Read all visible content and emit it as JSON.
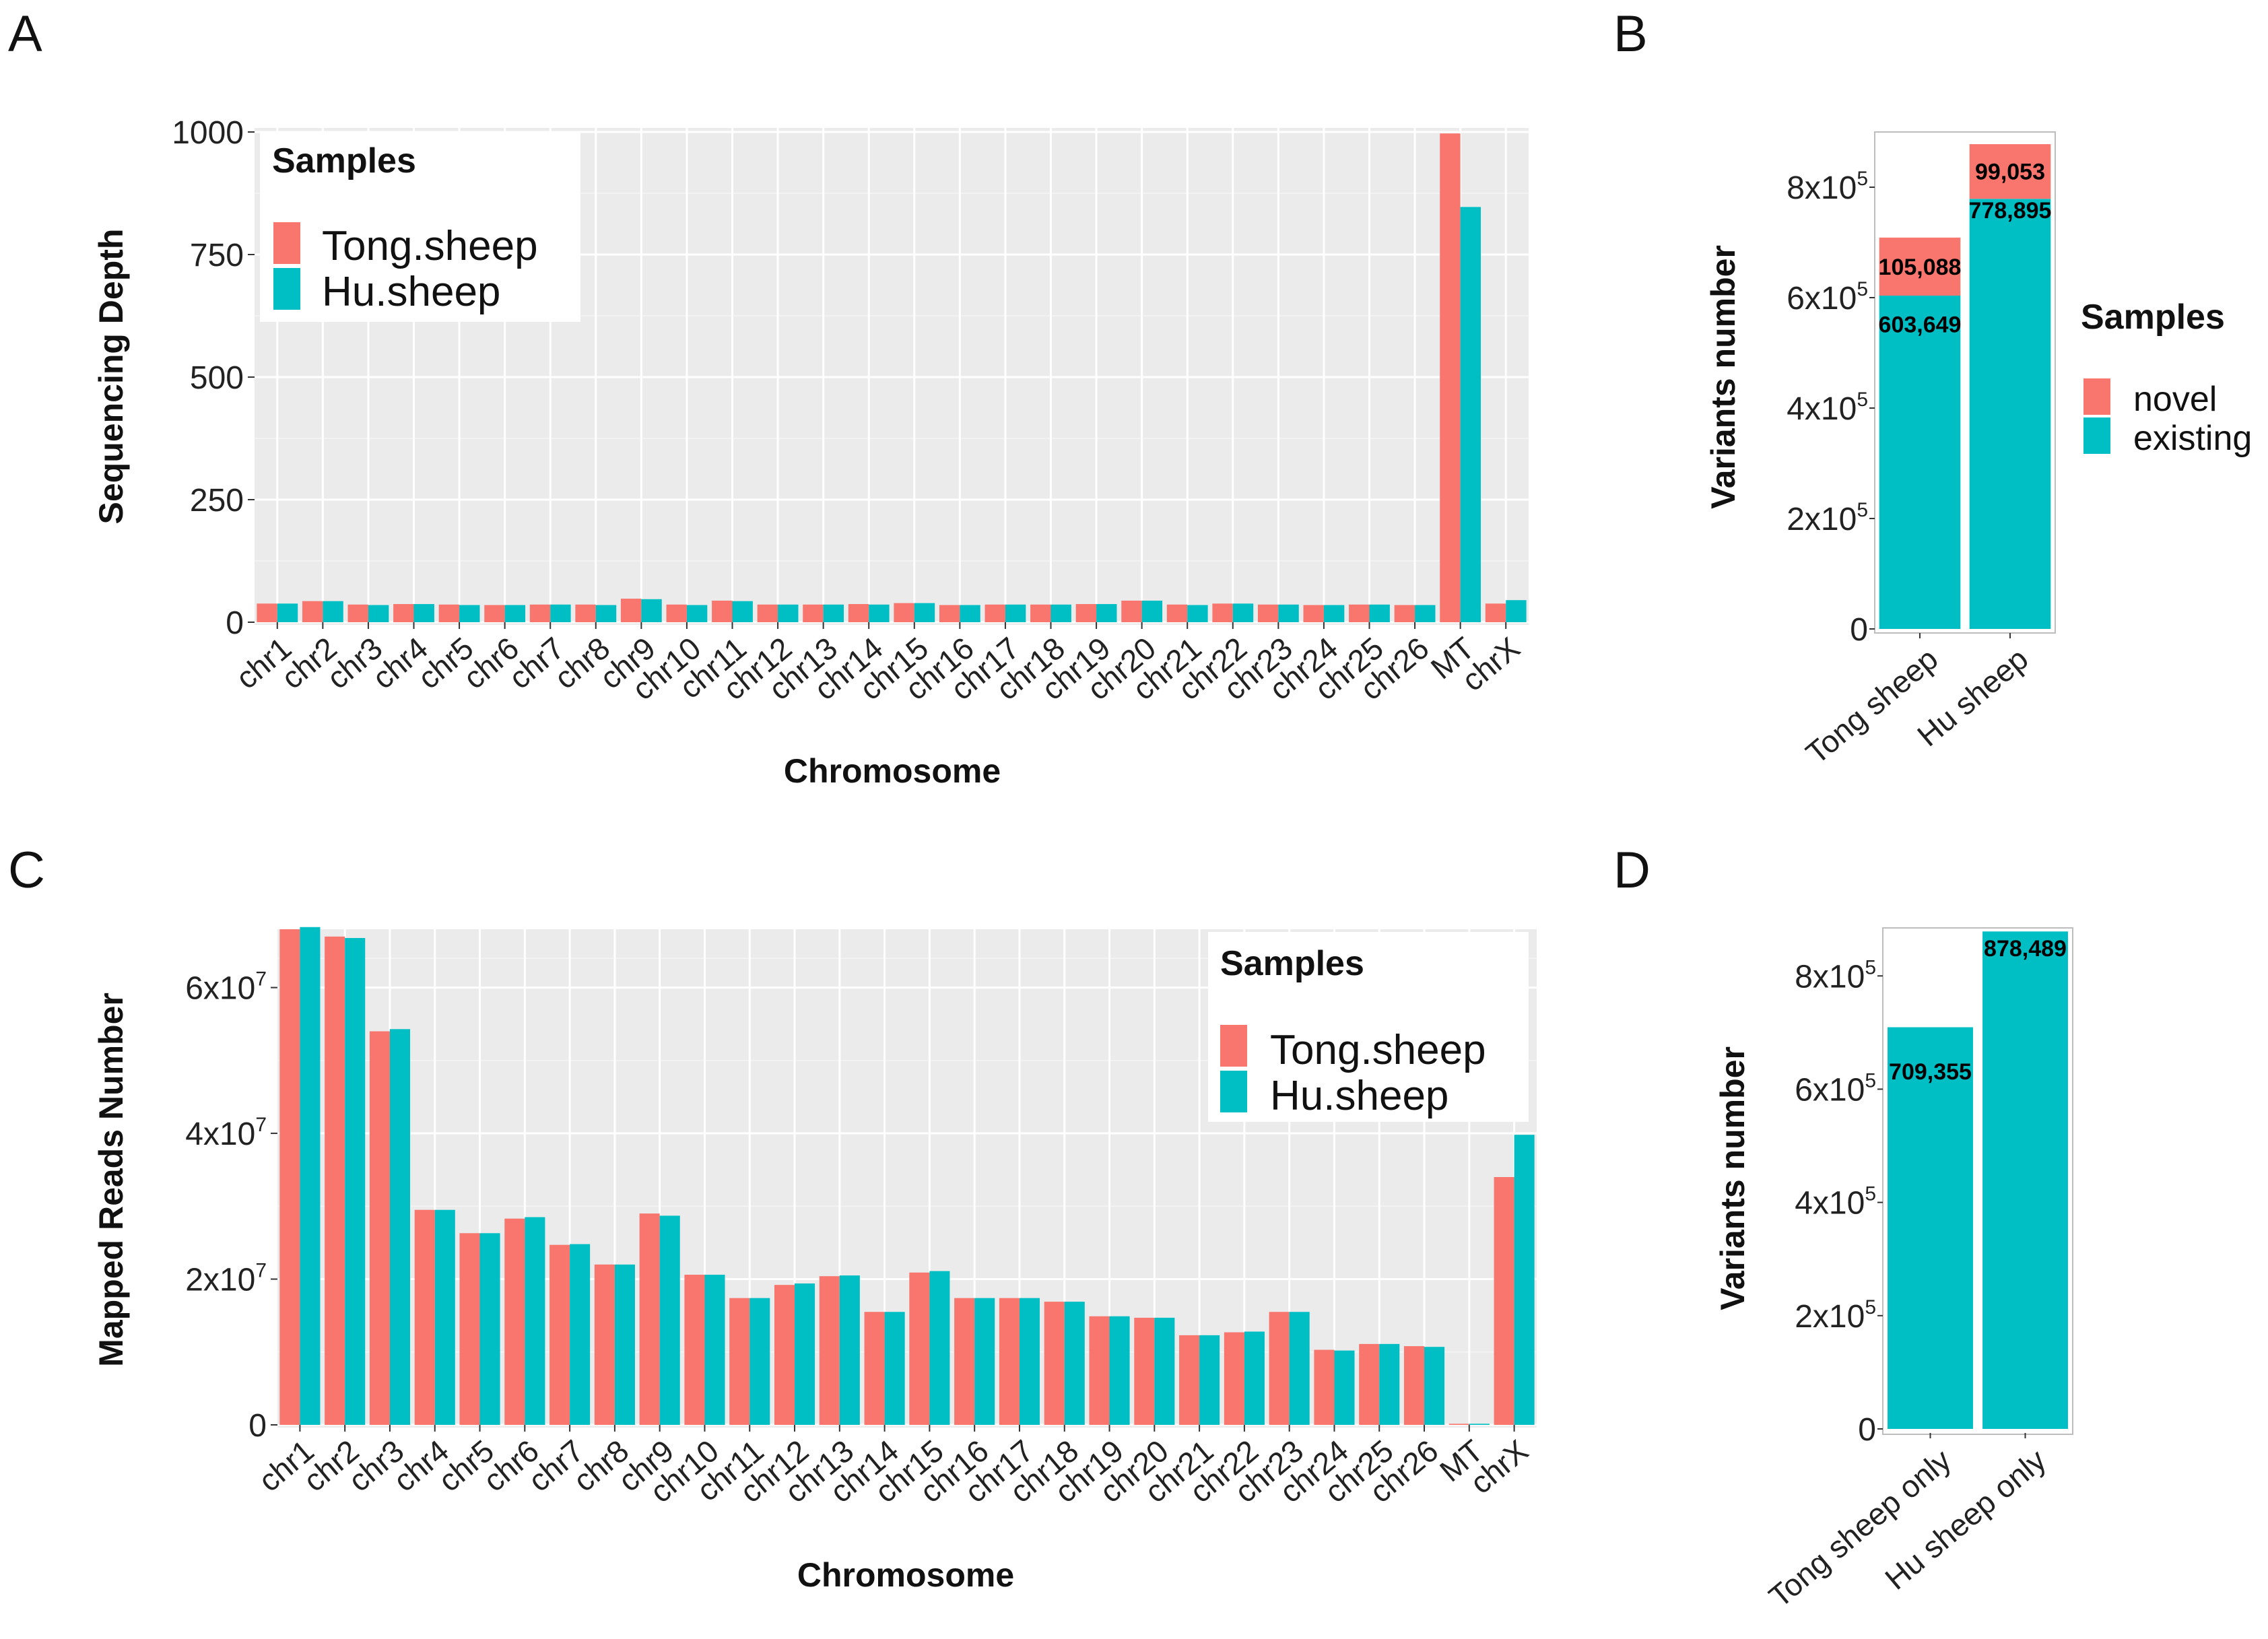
{
  "colors": {
    "tong": "#F8766D",
    "hu": "#00BFC4",
    "panel_bg": "#EBEBEB"
  },
  "chart_data": [
    {
      "id": "A",
      "type": "bar",
      "panel_label": "A",
      "xlabel": "Chromosome",
      "ylabel": "Sequencing Depth",
      "ylim": [
        0,
        1000
      ],
      "yticks": [
        0,
        250,
        500,
        750,
        1000
      ],
      "ytick_labels": [
        "0",
        "250",
        "500",
        "750",
        "1000"
      ],
      "legend_title": "Samples",
      "categories": [
        "chr1",
        "chr2",
        "chr3",
        "chr4",
        "chr5",
        "chr6",
        "chr7",
        "chr8",
        "chr9",
        "chr10",
        "chr11",
        "chr12",
        "chr13",
        "chr14",
        "chr15",
        "chr16",
        "chr17",
        "chr18",
        "chr19",
        "chr20",
        "chr21",
        "chr22",
        "chr23",
        "chr24",
        "chr25",
        "chr26",
        "MT",
        "chrX"
      ],
      "series": [
        {
          "name": "Tong.sheep",
          "values": [
            38,
            43,
            36,
            37,
            36,
            35,
            36,
            36,
            48,
            36,
            44,
            36,
            36,
            37,
            39,
            35,
            36,
            36,
            37,
            44,
            36,
            38,
            36,
            35,
            36,
            35,
            997,
            38
          ]
        },
        {
          "name": "Hu.sheep",
          "values": [
            38,
            43,
            35,
            37,
            35,
            35,
            36,
            35,
            47,
            35,
            43,
            36,
            36,
            36,
            39,
            35,
            36,
            36,
            37,
            44,
            35,
            38,
            36,
            35,
            36,
            35,
            847,
            45
          ]
        }
      ]
    },
    {
      "id": "B",
      "type": "bar",
      "stacked": true,
      "panel_label": "B",
      "ylabel": "Variants number",
      "ylim": [
        0,
        900000
      ],
      "yticks": [
        0,
        200000,
        400000,
        600000,
        800000
      ],
      "ytick_labels": [
        {
          "base": "0",
          "exp": ""
        },
        {
          "base": "2x10",
          "exp": "5"
        },
        {
          "base": "4x10",
          "exp": "5"
        },
        {
          "base": "6x10",
          "exp": "5"
        },
        {
          "base": "8x10",
          "exp": "5"
        }
      ],
      "legend_title": "Samples",
      "categories": [
        "Tong sheep",
        "Hu sheep"
      ],
      "series": [
        {
          "name": "existing",
          "values": [
            603649,
            778895
          ],
          "labels": [
            "603,649",
            "778,895"
          ]
        },
        {
          "name": "novel",
          "values": [
            105088,
            99053
          ],
          "labels": [
            "105,088",
            "99,053"
          ]
        }
      ],
      "legend_order": [
        "novel",
        "existing"
      ]
    },
    {
      "id": "C",
      "type": "bar",
      "panel_label": "C",
      "xlabel": "Chromosome",
      "ylabel": "Mapped Reads Number",
      "ylim": [
        0,
        68000000
      ],
      "yticks": [
        0,
        20000000,
        40000000,
        60000000
      ],
      "ytick_labels": [
        {
          "base": "0",
          "exp": ""
        },
        {
          "base": "2x10",
          "exp": "7"
        },
        {
          "base": "4x10",
          "exp": "7"
        },
        {
          "base": "6x10",
          "exp": "7"
        }
      ],
      "legend_title": "Samples",
      "categories": [
        "chr1",
        "chr2",
        "chr3",
        "chr4",
        "chr5",
        "chr6",
        "chr7",
        "chr8",
        "chr9",
        "chr10",
        "chr11",
        "chr12",
        "chr13",
        "chr14",
        "chr15",
        "chr16",
        "chr17",
        "chr18",
        "chr19",
        "chr20",
        "chr21",
        "chr22",
        "chr23",
        "chr24",
        "chr25",
        "chr26",
        "MT",
        "chrX"
      ],
      "series": [
        {
          "name": "Tong.sheep",
          "values": [
            68000000,
            67000000,
            54000000,
            29500000,
            26300000,
            28300000,
            24700000,
            22000000,
            29000000,
            20600000,
            17400000,
            19200000,
            20400000,
            15500000,
            20900000,
            17400000,
            17400000,
            16900000,
            14900000,
            14700000,
            12300000,
            12700000,
            15500000,
            10300000,
            11100000,
            10800000,
            150000,
            34000000
          ]
        },
        {
          "name": "Hu.sheep",
          "values": [
            68300000,
            66800000,
            54300000,
            29500000,
            26300000,
            28500000,
            24800000,
            22000000,
            28700000,
            20600000,
            17400000,
            19400000,
            20500000,
            15500000,
            21100000,
            17400000,
            17400000,
            16900000,
            14900000,
            14700000,
            12300000,
            12800000,
            15500000,
            10200000,
            11100000,
            10700000,
            150000,
            39800000
          ]
        }
      ]
    },
    {
      "id": "D",
      "type": "bar",
      "panel_label": "D",
      "ylabel": "Variants number",
      "ylim": [
        0,
        880000
      ],
      "yticks": [
        0,
        200000,
        400000,
        600000,
        800000
      ],
      "ytick_labels": [
        {
          "base": "0",
          "exp": ""
        },
        {
          "base": "2x10",
          "exp": "5"
        },
        {
          "base": "4x10",
          "exp": "5"
        },
        {
          "base": "6x10",
          "exp": "5"
        },
        {
          "base": "8x10",
          "exp": "5"
        }
      ],
      "categories": [
        "Tong sheep only",
        "Hu sheep only"
      ],
      "values": [
        709355,
        878489
      ],
      "value_labels": [
        "709,355",
        "878,489"
      ]
    }
  ]
}
